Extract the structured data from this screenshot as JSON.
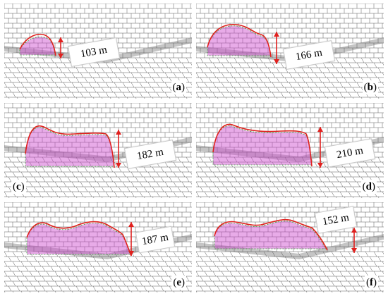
{
  "figure": {
    "panels": [
      {
        "letter": "a",
        "height_label": "103 m"
      },
      {
        "letter": "b",
        "height_label": "166 m"
      },
      {
        "letter": "c",
        "height_label": "182 m"
      },
      {
        "letter": "d",
        "height_label": "210 m"
      },
      {
        "letter": "e",
        "height_label": "187 m"
      },
      {
        "letter": "f",
        "height_label": "152 m"
      }
    ],
    "colors": {
      "mesh": "#5a5a5a",
      "boundary": "#e0201e",
      "arrow": "#e0201e",
      "particles_primary": "#cc44cc",
      "particles_secondary": "#3aa83a",
      "background": "#ffffff"
    }
  }
}
